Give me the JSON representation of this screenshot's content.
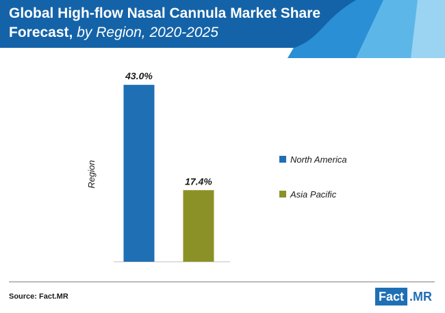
{
  "header": {
    "title_bold": "Global High-flow Nasal Cannula Market Share Forecast,",
    "title_italic": "by Region, 2020-2025",
    "band_color": "#1463a8",
    "accent_colors": [
      "#2a8fd4",
      "#5cb7e8",
      "#9bd3f2"
    ]
  },
  "chart_data": {
    "type": "bar",
    "title": "Global High-flow Nasal Cannula Market Share Forecast, by Region, 2020-2025",
    "ylabel": "Region",
    "xlabel": "",
    "categories": [
      "North America",
      "Asia Pacific"
    ],
    "values": [
      43.0,
      17.4
    ],
    "data_labels": [
      "43.0%",
      "17.4%"
    ],
    "colors": [
      "#1f6fb5",
      "#8b9127"
    ],
    "ylim": [
      0,
      50
    ],
    "grid": false,
    "legend_position": "right",
    "legend": [
      {
        "label": "North America",
        "color": "#1f6fb5"
      },
      {
        "label": "Asia Pacific",
        "color": "#8b9127"
      }
    ]
  },
  "footer": {
    "source": "Source: Fact.MR",
    "logo_fact": "Fact",
    "logo_mr": ".MR"
  }
}
